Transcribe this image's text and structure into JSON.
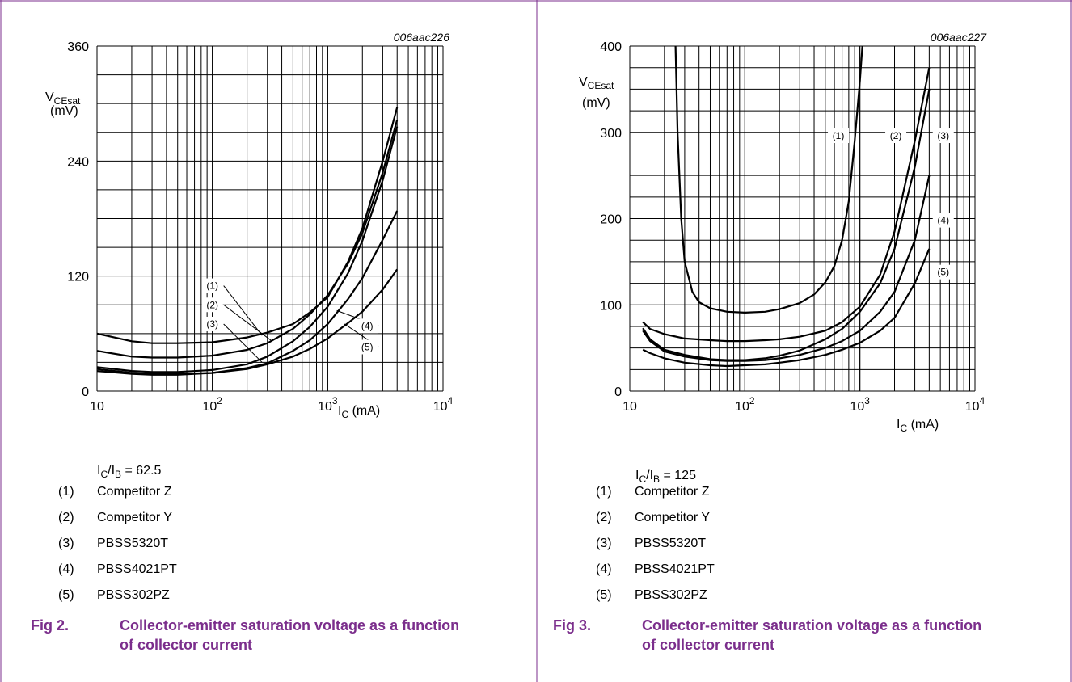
{
  "panels": [
    {
      "figure_id": "006aac226",
      "condition": {
        "main": "I",
        "sub1": "C",
        "mid": "/I",
        "sub2": "B",
        "tail": " = 62.5"
      },
      "legend": [
        {
          "num": "(1)",
          "label": "Competitor Z"
        },
        {
          "num": "(2)",
          "label": "Competitor Y"
        },
        {
          "num": "(3)",
          "label": "PBSS5320T"
        },
        {
          "num": "(4)",
          "label": "PBSS4021PT"
        },
        {
          "num": "(5)",
          "label": "PBSS302PZ"
        }
      ],
      "caption": {
        "num": "Fig 2.",
        "text": "Collector-emitter saturation voltage as a function of collector current"
      }
    },
    {
      "figure_id": "006aac227",
      "condition": {
        "main": "I",
        "sub1": "C",
        "mid": "/I",
        "sub2": "B",
        "tail": " = 125"
      },
      "legend": [
        {
          "num": "(1)",
          "label": "Competitor Z"
        },
        {
          "num": "(2)",
          "label": "Competitor Y"
        },
        {
          "num": "(3)",
          "label": "PBSS5320T"
        },
        {
          "num": "(4)",
          "label": "PBSS4021PT"
        },
        {
          "num": "(5)",
          "label": "PBSS302PZ"
        }
      ],
      "caption": {
        "num": "Fig 3.",
        "text": "Collector-emitter saturation voltage as a function of collector current"
      }
    }
  ],
  "chart_data": [
    {
      "type": "line",
      "x_scale": "log",
      "xlim": [
        10,
        10000
      ],
      "ylim": [
        0,
        360
      ],
      "y_ticks": [
        0,
        120,
        240,
        360
      ],
      "x_tick_labels": [
        "10",
        "10",
        "10",
        "10"
      ],
      "x_tick_exponents": [
        "",
        "2",
        "3",
        "4"
      ],
      "ylabel": {
        "main": "V",
        "sub": "CEsat",
        "unit": "(mV)"
      },
      "xlabel": {
        "main": "I",
        "sub": "C",
        "unit": " (mA)"
      },
      "grid": true,
      "series": [
        {
          "name": "(1)",
          "x": [
            10,
            20,
            30,
            50,
            100,
            200,
            300,
            500,
            700,
            1000,
            1500,
            2000,
            3000,
            4000
          ],
          "y": [
            60,
            52,
            50,
            50,
            51,
            56,
            61,
            70,
            82,
            98,
            135,
            170,
            240,
            296
          ]
        },
        {
          "name": "(2)",
          "x": [
            10,
            20,
            30,
            50,
            100,
            200,
            300,
            500,
            700,
            1000,
            1500,
            2000,
            3000,
            4000
          ],
          "y": [
            42,
            36,
            35,
            35,
            37,
            43,
            50,
            65,
            80,
            100,
            133,
            165,
            228,
            283
          ]
        },
        {
          "name": "(3)",
          "x": [
            10,
            20,
            30,
            50,
            100,
            200,
            300,
            500,
            700,
            1000,
            1500,
            2000,
            3000,
            4000
          ],
          "y": [
            25,
            21,
            20,
            20,
            22,
            28,
            36,
            52,
            67,
            88,
            123,
            157,
            220,
            276
          ]
        },
        {
          "name": "(4)",
          "x": [
            10,
            20,
            30,
            50,
            100,
            200,
            300,
            500,
            700,
            1000,
            1500,
            2000,
            3000,
            4000
          ],
          "y": [
            23,
            19,
            18,
            18,
            19,
            24,
            29,
            42,
            53,
            70,
            96,
            118,
            158,
            188
          ]
        },
        {
          "name": "(5)",
          "x": [
            10,
            20,
            30,
            50,
            100,
            200,
            300,
            500,
            700,
            1000,
            1500,
            2000,
            3000,
            4000
          ],
          "y": [
            21,
            18,
            17,
            17,
            19,
            23,
            28,
            36,
            44,
            55,
            71,
            83,
            106,
            127
          ]
        }
      ],
      "curve_labels": [
        {
          "text": "(1)",
          "x": 100,
          "y": 110,
          "to_x": 270,
          "to_y": 58
        },
        {
          "text": "(2)",
          "x": 100,
          "y": 90,
          "to_x": 330,
          "to_y": 52
        },
        {
          "text": "(3)",
          "x": 100,
          "y": 70,
          "to_x": 270,
          "to_y": 30
        },
        {
          "text": "(4)",
          "x": 2200,
          "y": 68,
          "to_x": 1200,
          "to_y": 84
        },
        {
          "text": "(5)",
          "x": 2200,
          "y": 46,
          "to_x": 1400,
          "to_y": 70
        }
      ]
    },
    {
      "type": "line",
      "x_scale": "log",
      "xlim": [
        10,
        10000
      ],
      "ylim": [
        0,
        400
      ],
      "y_ticks": [
        0,
        100,
        200,
        300,
        400
      ],
      "x_tick_labels": [
        "10",
        "10",
        "10",
        "10"
      ],
      "x_tick_exponents": [
        "",
        "2",
        "3",
        "4"
      ],
      "ylabel": {
        "main": "V",
        "sub": "CEsat",
        "unit": "(mV)"
      },
      "xlabel": {
        "main": "I",
        "sub": "C",
        "unit": " (mA)"
      },
      "grid": true,
      "series": [
        {
          "name": "(1)",
          "x": [
            25,
            26,
            28,
            30,
            35,
            40,
            50,
            70,
            100,
            150,
            200,
            300,
            400,
            500,
            600,
            700,
            800,
            900,
            1000,
            1050
          ],
          "y": [
            400,
            300,
            200,
            150,
            115,
            103,
            96,
            92,
            91,
            92,
            95,
            102,
            112,
            126,
            145,
            175,
            220,
            290,
            360,
            400
          ]
        },
        {
          "name": "(2)",
          "x": [
            13,
            15,
            20,
            30,
            50,
            70,
            100,
            150,
            200,
            300,
            500,
            700,
            1000,
            1500,
            2000,
            3000,
            4000
          ],
          "y": [
            80,
            72,
            66,
            61,
            59,
            58,
            58,
            59,
            60,
            63,
            70,
            80,
            98,
            135,
            185,
            290,
            375
          ]
        },
        {
          "name": "(3)",
          "x": [
            13,
            15,
            20,
            30,
            50,
            70,
            100,
            150,
            200,
            300,
            500,
            700,
            1000,
            1500,
            2000,
            3000,
            4000
          ],
          "y": [
            73,
            60,
            48,
            42,
            37,
            36,
            36,
            38,
            41,
            47,
            60,
            72,
            92,
            125,
            165,
            260,
            350
          ]
        },
        {
          "name": "(4)",
          "x": [
            13,
            15,
            20,
            30,
            50,
            70,
            100,
            150,
            200,
            300,
            500,
            700,
            1000,
            1500,
            2000,
            3000,
            4000
          ],
          "y": [
            70,
            58,
            46,
            40,
            36,
            35,
            35,
            36,
            38,
            42,
            50,
            58,
            70,
            92,
            115,
            175,
            250
          ]
        },
        {
          "name": "(5)",
          "x": [
            13,
            15,
            20,
            30,
            50,
            70,
            100,
            150,
            200,
            300,
            500,
            700,
            1000,
            1500,
            2000,
            3000,
            4000
          ],
          "y": [
            48,
            44,
            38,
            33,
            30,
            29,
            30,
            31,
            33,
            36,
            42,
            48,
            56,
            70,
            85,
            125,
            165
          ]
        }
      ],
      "curve_labels": [
        {
          "text": "(1)",
          "x": 650,
          "y": 296
        },
        {
          "text": "(2)",
          "x": 2050,
          "y": 296
        },
        {
          "text": "(3)",
          "x": 5300,
          "y": 296
        },
        {
          "text": "(4)",
          "x": 5300,
          "y": 198
        },
        {
          "text": "(5)",
          "x": 5300,
          "y": 138
        }
      ]
    }
  ]
}
